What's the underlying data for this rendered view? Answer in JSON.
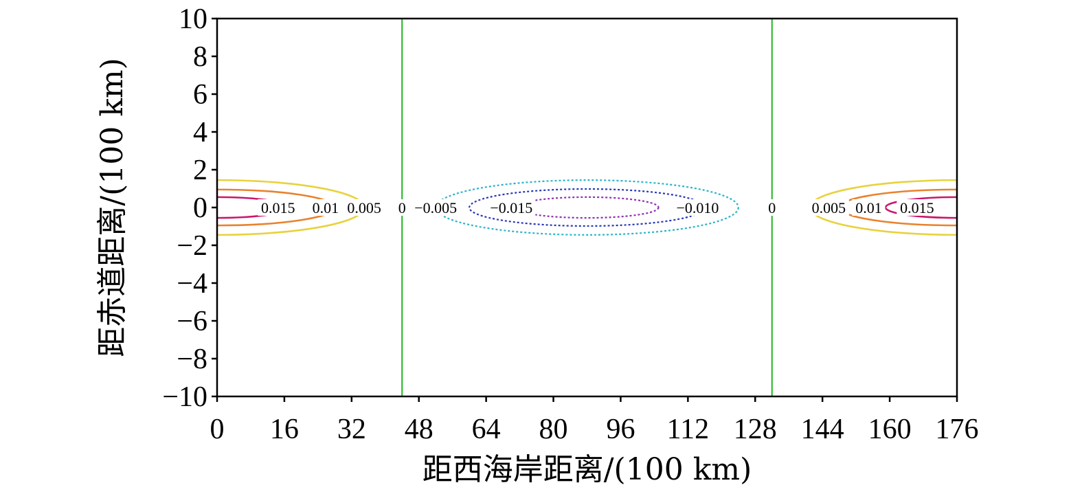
{
  "chart_data": {
    "type": "contour",
    "xlabel": "距西海岸距离/(100 km)",
    "ylabel": "距赤道距离/(100 km)",
    "xlim": [
      0,
      176
    ],
    "ylim": [
      -10,
      10
    ],
    "xticks": [
      0,
      16,
      32,
      48,
      64,
      80,
      96,
      112,
      128,
      144,
      160,
      176
    ],
    "yticks": [
      10,
      8,
      6,
      4,
      2,
      0,
      -2,
      -4,
      -6,
      -8,
      -10
    ],
    "yticklabels": [
      "10",
      "8",
      "6",
      "4",
      "2",
      "0",
      "−2",
      "−4",
      "−6",
      "−8",
      "−10"
    ],
    "grid": false,
    "zero_lines_x": [
      44,
      132
    ],
    "contours": [
      {
        "level": "0.005",
        "color": "#e8d23e",
        "style": "solid",
        "cx": 0,
        "rx": 35,
        "ry": 1.45
      },
      {
        "level": "0.01",
        "color": "#e8822e",
        "style": "solid",
        "cx": 0,
        "rx": 28,
        "ry": 0.95
      },
      {
        "level": "0.015",
        "color": "#c8186a",
        "style": "solid",
        "cx": 0,
        "rx": 17,
        "ry": 0.55
      },
      {
        "level": "0.005",
        "color": "#e8d23e",
        "style": "solid",
        "cx": 176,
        "rx": 35,
        "ry": 1.45
      },
      {
        "level": "0.01",
        "color": "#e8822e",
        "style": "solid",
        "cx": 176,
        "rx": 28,
        "ry": 0.95
      },
      {
        "level": "0.015",
        "color": "#c8186a",
        "style": "solid",
        "cx": 176,
        "rx": 17,
        "ry": 0.55
      },
      {
        "level": "−0.005",
        "color": "#2ab4c8",
        "style": "dotted",
        "cx": 88,
        "rx": 36,
        "ry": 1.45
      },
      {
        "level": "−0.010",
        "color": "#2838b8",
        "style": "dotted",
        "cx": 88,
        "rx": 28,
        "ry": 0.98
      },
      {
        "level": "−0.015",
        "color": "#9030b0",
        "style": "dotted",
        "cx": 88,
        "rx": 17,
        "ry": 0.55
      }
    ],
    "labels": [
      {
        "text": "0.015",
        "x": 14.5,
        "y": 0
      },
      {
        "text": "0.01",
        "x": 25.8,
        "y": 0
      },
      {
        "text": "0.005",
        "x": 35.0,
        "y": 0
      },
      {
        "text": "0",
        "x": 44,
        "y": 0
      },
      {
        "text": "−0.005",
        "x": 52.0,
        "y": 0
      },
      {
        "text": "−0.015",
        "x": 70.0,
        "y": 0
      },
      {
        "text": "−0.010",
        "x": 114.3,
        "y": 0
      },
      {
        "text": "0",
        "x": 132,
        "y": 0
      },
      {
        "text": "0.005",
        "x": 145.5,
        "y": 0
      },
      {
        "text": "0.01",
        "x": 155.0,
        "y": 0
      },
      {
        "text": "0.015",
        "x": 166.5,
        "y": 0
      }
    ]
  }
}
